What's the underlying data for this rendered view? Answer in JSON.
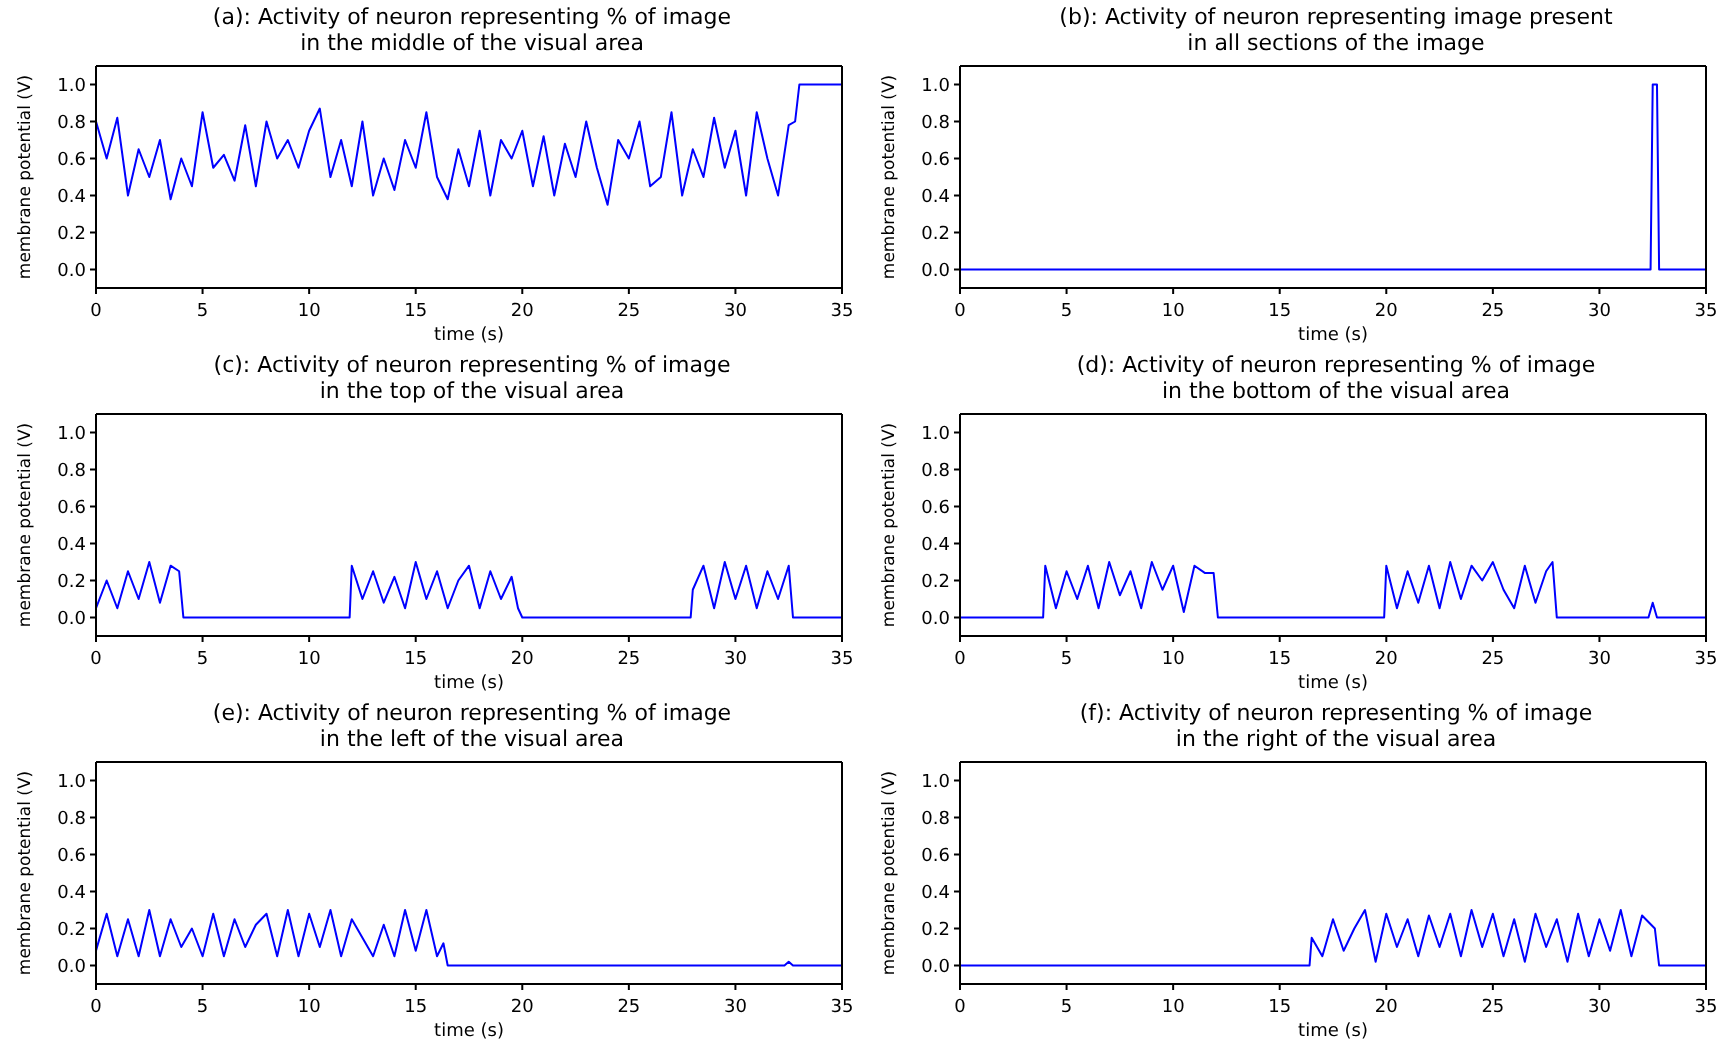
{
  "chart_data": [
    {
      "type": "line",
      "title": "(a): Activity of neuron representing % of image\nin the middle of the visual area",
      "xlabel": "time (s)",
      "ylabel": "membrane potential (V)",
      "xlim": [
        0,
        35
      ],
      "xticks": [
        0,
        5,
        10,
        15,
        20,
        25,
        30,
        35
      ],
      "ylim": [
        -0.1,
        1.1
      ],
      "yticks": [
        {
          "value": 0,
          "label": "0.0"
        },
        {
          "value": 0.2,
          "label": "0.2"
        },
        {
          "value": 0.4,
          "label": "0.4"
        },
        {
          "value": 0.6,
          "label": "0.6"
        },
        {
          "value": 0.8,
          "label": "0.8"
        },
        {
          "value": 1,
          "label": "1.0"
        }
      ],
      "grid": false,
      "series": [
        {
          "color": "#0000ff",
          "x": [
            0,
            0.5,
            1,
            1.5,
            2,
            2.5,
            3,
            3.5,
            4,
            4.5,
            5,
            5.5,
            6,
            6.5,
            7,
            7.5,
            8,
            8.5,
            9,
            9.5,
            10,
            10.5,
            11,
            11.5,
            12,
            12.5,
            13,
            13.5,
            14,
            14.5,
            15,
            15.5,
            16,
            16.5,
            17,
            17.5,
            18,
            18.5,
            19,
            19.5,
            20,
            20.5,
            21,
            21.5,
            22,
            22.5,
            23,
            23.5,
            24,
            24.5,
            25,
            25.5,
            26,
            26.5,
            27,
            27.5,
            28,
            28.5,
            29,
            29.5,
            30,
            30.5,
            31,
            31.5,
            32,
            32.5,
            32.8,
            33,
            35
          ],
          "values": [
            0.8,
            0.6,
            0.82,
            0.4,
            0.65,
            0.5,
            0.7,
            0.38,
            0.6,
            0.45,
            0.85,
            0.55,
            0.62,
            0.48,
            0.78,
            0.45,
            0.8,
            0.6,
            0.7,
            0.55,
            0.75,
            0.87,
            0.5,
            0.7,
            0.45,
            0.8,
            0.4,
            0.6,
            0.43,
            0.7,
            0.55,
            0.85,
            0.5,
            0.38,
            0.65,
            0.45,
            0.75,
            0.4,
            0.7,
            0.6,
            0.75,
            0.45,
            0.72,
            0.4,
            0.68,
            0.5,
            0.8,
            0.55,
            0.35,
            0.7,
            0.6,
            0.8,
            0.45,
            0.5,
            0.85,
            0.4,
            0.65,
            0.5,
            0.82,
            0.55,
            0.75,
            0.4,
            0.85,
            0.6,
            0.4,
            0.78,
            0.8,
            1.0,
            1.0
          ]
        }
      ]
    },
    {
      "type": "line",
      "title": "(b): Activity of neuron representing image present\nin all sections of the image",
      "xlabel": "time (s)",
      "ylabel": "membrane potential (V)",
      "xlim": [
        0,
        35
      ],
      "xticks": [
        0,
        5,
        10,
        15,
        20,
        25,
        30,
        35
      ],
      "ylim": [
        -0.1,
        1.1
      ],
      "yticks": [
        {
          "value": 0,
          "label": "0.0"
        },
        {
          "value": 0.2,
          "label": "0.2"
        },
        {
          "value": 0.4,
          "label": "0.4"
        },
        {
          "value": 0.6,
          "label": "0.6"
        },
        {
          "value": 0.8,
          "label": "0.8"
        },
        {
          "value": 1,
          "label": "1.0"
        }
      ],
      "grid": false,
      "series": [
        {
          "color": "#0000ff",
          "x": [
            0,
            32.4,
            32.5,
            32.7,
            32.8,
            35
          ],
          "values": [
            0,
            0,
            1.0,
            1.0,
            0,
            0
          ]
        }
      ]
    },
    {
      "type": "line",
      "title": "(c): Activity of neuron representing % of image\nin the top of the visual area",
      "xlabel": "time (s)",
      "ylabel": "membrane potential (V)",
      "xlim": [
        0,
        35
      ],
      "xticks": [
        0,
        5,
        10,
        15,
        20,
        25,
        30,
        35
      ],
      "ylim": [
        -0.1,
        1.1
      ],
      "yticks": [
        {
          "value": 0,
          "label": "0.0"
        },
        {
          "value": 0.2,
          "label": "0.2"
        },
        {
          "value": 0.4,
          "label": "0.4"
        },
        {
          "value": 0.6,
          "label": "0.6"
        },
        {
          "value": 0.8,
          "label": "0.8"
        },
        {
          "value": 1,
          "label": "1.0"
        }
      ],
      "grid": false,
      "series": [
        {
          "color": "#0000ff",
          "x": [
            0,
            0.5,
            1,
            1.5,
            2,
            2.5,
            3,
            3.5,
            3.9,
            4.1,
            11.9,
            12,
            12.5,
            13,
            13.5,
            14,
            14.5,
            15,
            15.5,
            16,
            16.5,
            17,
            17.5,
            18,
            18.5,
            19,
            19.5,
            19.8,
            20,
            27.9,
            28,
            28.5,
            29,
            29.5,
            30,
            30.5,
            31,
            31.5,
            32,
            32.5,
            32.7,
            35
          ],
          "values": [
            0.05,
            0.2,
            0.05,
            0.25,
            0.1,
            0.3,
            0.08,
            0.28,
            0.25,
            0,
            0,
            0.28,
            0.1,
            0.25,
            0.08,
            0.22,
            0.05,
            0.3,
            0.1,
            0.25,
            0.05,
            0.2,
            0.28,
            0.05,
            0.25,
            0.1,
            0.22,
            0.05,
            0,
            0,
            0.15,
            0.28,
            0.05,
            0.3,
            0.1,
            0.28,
            0.05,
            0.25,
            0.1,
            0.28,
            0,
            0
          ]
        }
      ]
    },
    {
      "type": "line",
      "title": "(d): Activity of neuron representing % of image\nin the bottom of the visual area",
      "xlabel": "time (s)",
      "ylabel": "membrane potential (V)",
      "xlim": [
        0,
        35
      ],
      "xticks": [
        0,
        5,
        10,
        15,
        20,
        25,
        30,
        35
      ],
      "ylim": [
        -0.1,
        1.1
      ],
      "yticks": [
        {
          "value": 0,
          "label": "0.0"
        },
        {
          "value": 0.2,
          "label": "0.2"
        },
        {
          "value": 0.4,
          "label": "0.4"
        },
        {
          "value": 0.6,
          "label": "0.6"
        },
        {
          "value": 0.8,
          "label": "0.8"
        },
        {
          "value": 1,
          "label": "1.0"
        }
      ],
      "grid": false,
      "series": [
        {
          "color": "#0000ff",
          "x": [
            0,
            3.9,
            4,
            4.5,
            5,
            5.5,
            6,
            6.5,
            7,
            7.5,
            8,
            8.5,
            9,
            9.5,
            10,
            10.5,
            11,
            11.5,
            11.9,
            12.1,
            19.9,
            20,
            20.5,
            21,
            21.5,
            22,
            22.5,
            23,
            23.5,
            24,
            24.5,
            25,
            25.5,
            26,
            26.5,
            27,
            27.5,
            27.8,
            28,
            32.3,
            32.5,
            32.7,
            35
          ],
          "values": [
            0,
            0,
            0.28,
            0.05,
            0.25,
            0.1,
            0.28,
            0.05,
            0.3,
            0.12,
            0.25,
            0.05,
            0.3,
            0.15,
            0.28,
            0.03,
            0.28,
            0.24,
            0.24,
            0,
            0,
            0.28,
            0.05,
            0.25,
            0.08,
            0.28,
            0.05,
            0.3,
            0.1,
            0.28,
            0.2,
            0.3,
            0.15,
            0.05,
            0.28,
            0.08,
            0.25,
            0.3,
            0,
            0,
            0.08,
            0,
            0
          ]
        }
      ]
    },
    {
      "type": "line",
      "title": "(e): Activity of neuron representing % of image\nin the left of the visual area",
      "xlabel": "time (s)",
      "ylabel": "membrane potential (V)",
      "xlim": [
        0,
        35
      ],
      "xticks": [
        0,
        5,
        10,
        15,
        20,
        25,
        30,
        35
      ],
      "ylim": [
        -0.1,
        1.1
      ],
      "yticks": [
        {
          "value": 0,
          "label": "0.0"
        },
        {
          "value": 0.2,
          "label": "0.2"
        },
        {
          "value": 0.4,
          "label": "0.4"
        },
        {
          "value": 0.6,
          "label": "0.6"
        },
        {
          "value": 0.8,
          "label": "0.8"
        },
        {
          "value": 1,
          "label": "1.0"
        }
      ],
      "grid": false,
      "series": [
        {
          "color": "#0000ff",
          "x": [
            0,
            0.5,
            1,
            1.5,
            2,
            2.5,
            3,
            3.5,
            4,
            4.5,
            5,
            5.5,
            6,
            6.5,
            7,
            7.5,
            8,
            8.5,
            9,
            9.5,
            10,
            10.5,
            11,
            11.5,
            12,
            12.5,
            13,
            13.5,
            14,
            14.5,
            15,
            15.5,
            16,
            16.3,
            16.5,
            32.3,
            32.5,
            32.7,
            35
          ],
          "values": [
            0.08,
            0.28,
            0.05,
            0.25,
            0.05,
            0.3,
            0.05,
            0.25,
            0.1,
            0.2,
            0.05,
            0.28,
            0.05,
            0.25,
            0.1,
            0.22,
            0.28,
            0.05,
            0.3,
            0.05,
            0.28,
            0.1,
            0.3,
            0.05,
            0.25,
            0.15,
            0.05,
            0.22,
            0.05,
            0.3,
            0.08,
            0.3,
            0.05,
            0.12,
            0,
            0,
            0.02,
            0,
            0
          ]
        }
      ]
    },
    {
      "type": "line",
      "title": "(f): Activity of neuron representing % of image\nin the right of the visual area",
      "xlabel": "time (s)",
      "ylabel": "membrane potential (V)",
      "xlim": [
        0,
        35
      ],
      "xticks": [
        0,
        5,
        10,
        15,
        20,
        25,
        30,
        35
      ],
      "ylim": [
        -0.1,
        1.1
      ],
      "yticks": [
        {
          "value": 0,
          "label": "0.0"
        },
        {
          "value": 0.2,
          "label": "0.2"
        },
        {
          "value": 0.4,
          "label": "0.4"
        },
        {
          "value": 0.6,
          "label": "0.6"
        },
        {
          "value": 0.8,
          "label": "0.8"
        },
        {
          "value": 1,
          "label": "1.0"
        }
      ],
      "grid": false,
      "series": [
        {
          "color": "#0000ff",
          "x": [
            0,
            16.4,
            16.5,
            17,
            17.5,
            18,
            18.5,
            19,
            19.5,
            20,
            20.5,
            21,
            21.5,
            22,
            22.5,
            23,
            23.5,
            24,
            24.5,
            25,
            25.5,
            26,
            26.5,
            27,
            27.5,
            28,
            28.5,
            29,
            29.5,
            30,
            30.5,
            31,
            31.5,
            32,
            32.6,
            32.8,
            35
          ],
          "values": [
            0,
            0,
            0.15,
            0.05,
            0.25,
            0.08,
            0.2,
            0.3,
            0.02,
            0.28,
            0.1,
            0.25,
            0.05,
            0.27,
            0.1,
            0.28,
            0.05,
            0.3,
            0.1,
            0.28,
            0.05,
            0.25,
            0.02,
            0.28,
            0.1,
            0.25,
            0.02,
            0.28,
            0.05,
            0.25,
            0.08,
            0.3,
            0.05,
            0.27,
            0.2,
            0,
            0
          ]
        }
      ]
    }
  ]
}
